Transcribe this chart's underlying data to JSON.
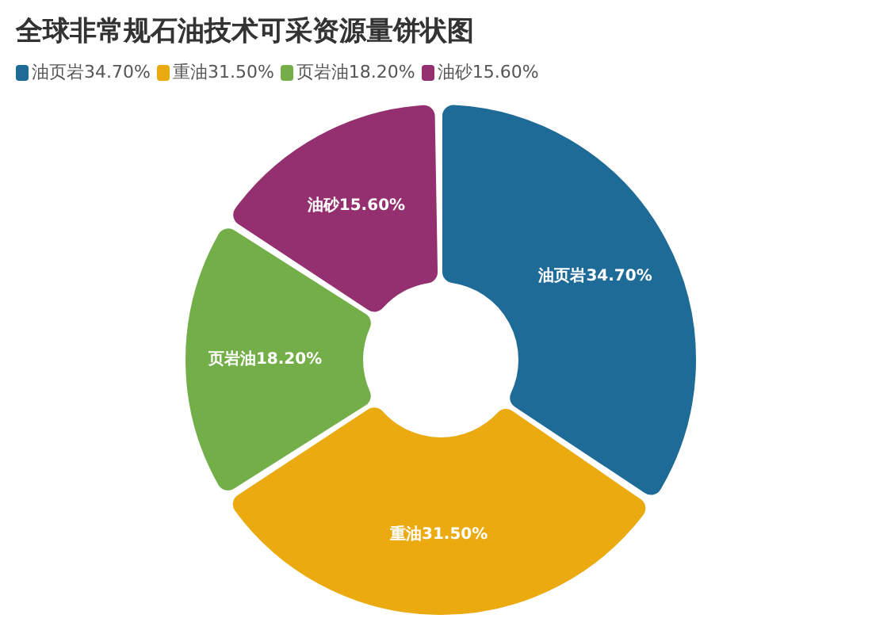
{
  "chart_data": {
    "type": "donut",
    "title": "全球非常规石油技术可采资源量饼状图",
    "categories": [
      "油页岩",
      "重油",
      "页岩油",
      "油砂"
    ],
    "values": [
      34.7,
      31.5,
      18.2,
      15.6
    ],
    "value_labels": [
      "34.70%",
      "31.50%",
      "18.20%",
      "15.60%"
    ],
    "colors": [
      "#1f6b98",
      "#ebaa10",
      "#73ae49",
      "#94306f"
    ],
    "legend": "top left"
  }
}
